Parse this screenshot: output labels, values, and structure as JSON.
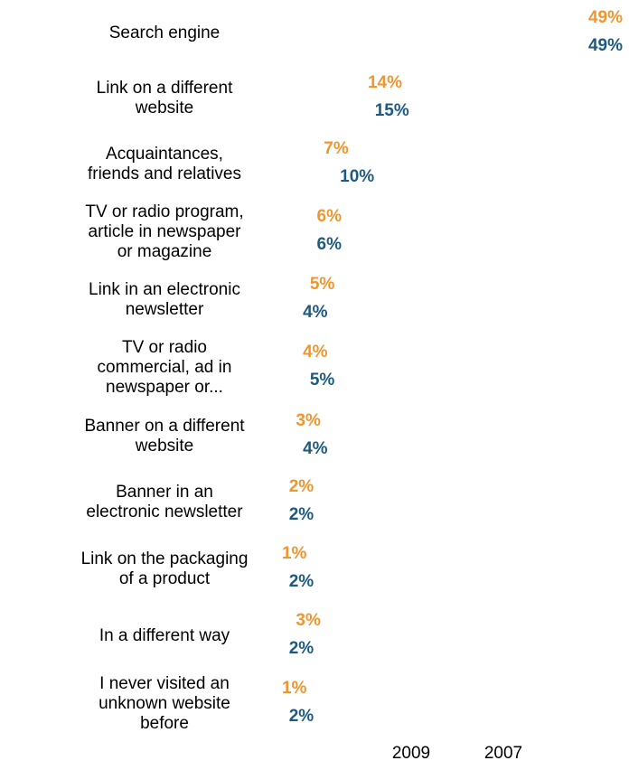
{
  "chart_data": {
    "type": "bar",
    "orientation": "horizontal",
    "categories": [
      [
        "Search engine"
      ],
      [
        "Link on a different",
        "website"
      ],
      [
        "Acquaintances,",
        "friends and relatives"
      ],
      [
        "TV or radio program,",
        "article in newspaper",
        "or magazine"
      ],
      [
        "Link in an electronic",
        "newsletter"
      ],
      [
        "TV or radio",
        "commercial, ad in",
        "newspaper or..."
      ],
      [
        "Banner on a different",
        "website"
      ],
      [
        "Banner in an",
        "electronic newsletter"
      ],
      [
        "Link on the packaging",
        "of a product"
      ],
      [
        "In a different way"
      ],
      [
        "I never visited an",
        "unknown website",
        "before"
      ]
    ],
    "series": [
      {
        "name": "2009",
        "color": "#f0962e",
        "values": [
          49,
          14,
          7,
          6,
          5,
          4,
          3,
          2,
          1,
          3,
          1
        ],
        "labels": [
          "49%",
          "14%",
          "7%",
          "6%",
          "5%",
          "4%",
          "3%",
          "2%",
          "1%",
          "3%",
          "1%"
        ]
      },
      {
        "name": "2007",
        "color": "#1d5a80",
        "values": [
          49,
          15,
          10,
          6,
          4,
          5,
          4,
          2,
          2,
          2,
          2
        ],
        "labels": [
          "49%",
          "15%",
          "10%",
          "6%",
          "4%",
          "5%",
          "4%",
          "2%",
          "2%",
          "2%",
          "2%"
        ]
      }
    ],
    "xlim": [
      0,
      50
    ],
    "grid": false,
    "bars_visible": false,
    "legend_placement": "bottom"
  }
}
